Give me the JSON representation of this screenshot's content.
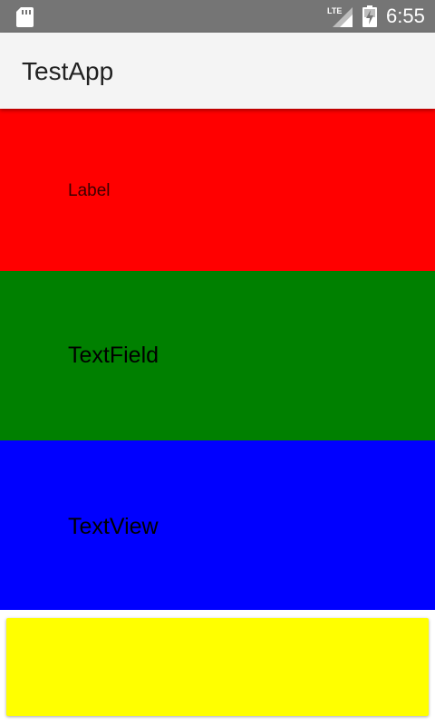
{
  "status_bar": {
    "time": "6:55",
    "network_label": "LTE",
    "icons": [
      "sd-card-icon",
      "lte-signal-icon",
      "battery-charging-icon"
    ]
  },
  "app_bar": {
    "title": "TestApp"
  },
  "content": {
    "label_text": "Label",
    "textfield_text": "TextField",
    "textview_text": "TextView"
  },
  "colors": {
    "status_bar": "#757575",
    "app_bar": "#f4f4f4",
    "label_block": "#ff0000",
    "textfield_block": "#008000",
    "textview_block": "#0000ff",
    "bottom_box": "#ffff00"
  }
}
